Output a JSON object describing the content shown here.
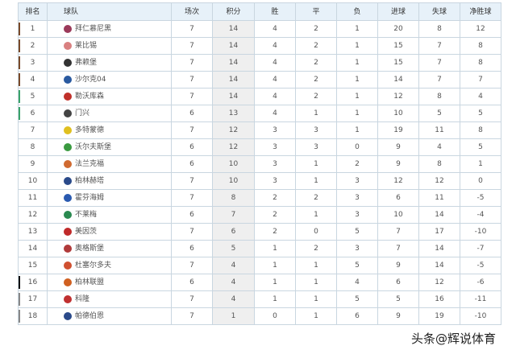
{
  "headers": [
    "排名",
    "球队",
    "场次",
    "积分",
    "胜",
    "平",
    "负",
    "进球",
    "失球",
    "净胜球"
  ],
  "rows": [
    {
      "rank": "1",
      "team": "拜仁慕尼黑",
      "played": "7",
      "pts": "14",
      "w": "4",
      "d": "2",
      "l": "1",
      "gf": "20",
      "ga": "8",
      "gd": "12",
      "logo": "#9b3a5a",
      "zone": "#7a4a2a"
    },
    {
      "rank": "2",
      "team": "莱比锡",
      "played": "7",
      "pts": "14",
      "w": "4",
      "d": "2",
      "l": "1",
      "gf": "15",
      "ga": "7",
      "gd": "8",
      "logo": "#d98080",
      "zone": "#7a4a2a"
    },
    {
      "rank": "3",
      "team": "弗赖堡",
      "played": "7",
      "pts": "14",
      "w": "4",
      "d": "2",
      "l": "1",
      "gf": "15",
      "ga": "7",
      "gd": "8",
      "logo": "#333333",
      "zone": "#7a4a2a"
    },
    {
      "rank": "4",
      "team": "沙尔克04",
      "played": "7",
      "pts": "14",
      "w": "4",
      "d": "2",
      "l": "1",
      "gf": "14",
      "ga": "7",
      "gd": "7",
      "logo": "#2a5aa0",
      "zone": "#7a4a2a"
    },
    {
      "rank": "5",
      "team": "勒沃库森",
      "played": "7",
      "pts": "14",
      "w": "4",
      "d": "2",
      "l": "1",
      "gf": "12",
      "ga": "8",
      "gd": "4",
      "logo": "#c0302a",
      "zone": "#3aa36a"
    },
    {
      "rank": "6",
      "team": "门兴",
      "played": "6",
      "pts": "13",
      "w": "4",
      "d": "1",
      "l": "1",
      "gf": "10",
      "ga": "5",
      "gd": "5",
      "logo": "#444444",
      "zone": "#3aa36a"
    },
    {
      "rank": "7",
      "team": "多特蒙德",
      "played": "7",
      "pts": "12",
      "w": "3",
      "d": "3",
      "l": "1",
      "gf": "19",
      "ga": "11",
      "gd": "8",
      "logo": "#e0c020",
      "zone": ""
    },
    {
      "rank": "8",
      "team": "沃尔夫斯堡",
      "played": "6",
      "pts": "12",
      "w": "3",
      "d": "3",
      "l": "0",
      "gf": "9",
      "ga": "4",
      "gd": "5",
      "logo": "#3a9a40",
      "zone": ""
    },
    {
      "rank": "9",
      "team": "法兰克福",
      "played": "6",
      "pts": "10",
      "w": "3",
      "d": "1",
      "l": "2",
      "gf": "9",
      "ga": "8",
      "gd": "1",
      "logo": "#d06a30",
      "zone": ""
    },
    {
      "rank": "10",
      "team": "柏林赫塔",
      "played": "7",
      "pts": "10",
      "w": "3",
      "d": "1",
      "l": "3",
      "gf": "12",
      "ga": "12",
      "gd": "0",
      "logo": "#2a4a8a",
      "zone": ""
    },
    {
      "rank": "11",
      "team": "霍芬海姆",
      "played": "7",
      "pts": "8",
      "w": "2",
      "d": "2",
      "l": "3",
      "gf": "6",
      "ga": "11",
      "gd": "-5",
      "logo": "#2a5ab0",
      "zone": ""
    },
    {
      "rank": "12",
      "team": "不莱梅",
      "played": "6",
      "pts": "7",
      "w": "2",
      "d": "1",
      "l": "3",
      "gf": "10",
      "ga": "14",
      "gd": "-4",
      "logo": "#2a8a50",
      "zone": ""
    },
    {
      "rank": "13",
      "team": "美因茨",
      "played": "7",
      "pts": "6",
      "w": "2",
      "d": "0",
      "l": "5",
      "gf": "7",
      "ga": "17",
      "gd": "-10",
      "logo": "#c02a2a",
      "zone": ""
    },
    {
      "rank": "14",
      "team": "奥格斯堡",
      "played": "6",
      "pts": "5",
      "w": "1",
      "d": "2",
      "l": "3",
      "gf": "7",
      "ga": "14",
      "gd": "-7",
      "logo": "#b03a3a",
      "zone": ""
    },
    {
      "rank": "15",
      "team": "杜塞尔多夫",
      "played": "7",
      "pts": "4",
      "w": "1",
      "d": "1",
      "l": "5",
      "gf": "9",
      "ga": "14",
      "gd": "-5",
      "logo": "#d05030",
      "zone": ""
    },
    {
      "rank": "16",
      "team": "柏林联盟",
      "played": "6",
      "pts": "4",
      "w": "1",
      "d": "1",
      "l": "4",
      "gf": "6",
      "ga": "12",
      "gd": "-6",
      "logo": "#d06020",
      "zone": "#111111"
    },
    {
      "rank": "17",
      "team": "科隆",
      "played": "7",
      "pts": "4",
      "w": "1",
      "d": "1",
      "l": "5",
      "gf": "5",
      "ga": "16",
      "gd": "-11",
      "logo": "#c03030",
      "zone": "#888888"
    },
    {
      "rank": "18",
      "team": "帕德伯恩",
      "played": "7",
      "pts": "1",
      "w": "0",
      "d": "1",
      "l": "6",
      "gf": "9",
      "ga": "19",
      "gd": "-10",
      "logo": "#2a4a8a",
      "zone": "#888888"
    }
  ],
  "watermark": "头条@辉说体育"
}
